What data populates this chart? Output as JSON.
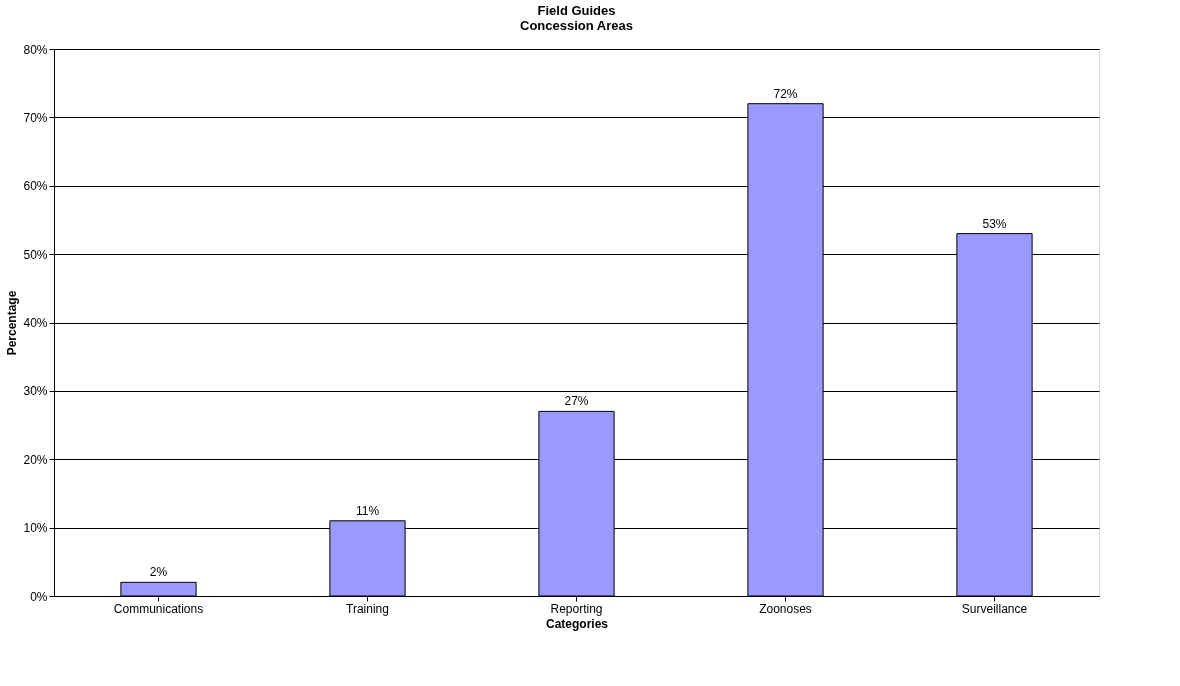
{
  "chart_data": {
    "type": "bar",
    "title": "Field Guides",
    "subtitle": "Concession Areas",
    "xlabel": "Categories",
    "ylabel": "Percentage",
    "categories": [
      "Communications",
      "Training",
      "Reporting",
      "Zoonoses",
      "Surveillance"
    ],
    "values": [
      2,
      11,
      27,
      72,
      53
    ],
    "color": "#9999ff",
    "value_labels": [
      "2%",
      "11%",
      "27%",
      "72%",
      "53%"
    ],
    "ylim": [
      0,
      80
    ],
    "yticks": [
      {
        "value": 0,
        "label": "0%"
      },
      {
        "value": 10,
        "label": "10%"
      },
      {
        "value": 20,
        "label": "20%"
      },
      {
        "value": 30,
        "label": "30%"
      },
      {
        "value": 40,
        "label": "40%"
      },
      {
        "value": 50,
        "label": "50%"
      },
      {
        "value": 60,
        "label": "60%"
      },
      {
        "value": 70,
        "label": "70%"
      },
      {
        "value": 80,
        "label": "80%"
      }
    ],
    "grid": "y"
  }
}
